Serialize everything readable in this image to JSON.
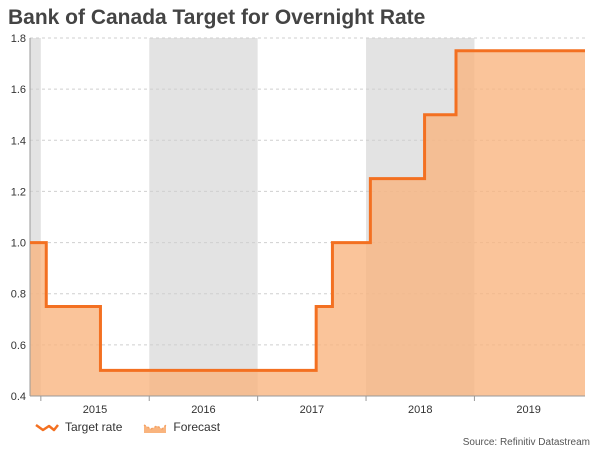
{
  "chart_data": {
    "type": "line",
    "title": "Bank of Canada Target for Overnight Rate",
    "xlabel": "",
    "ylabel": "",
    "ylim": [
      0.4,
      1.8
    ],
    "yticks": [
      0.4,
      0.6,
      0.8,
      1.0,
      1.2,
      1.4,
      1.6,
      1.8
    ],
    "ytick_labels": [
      "0.4",
      "0.6",
      "0.8",
      "1.0",
      "1.2",
      "1.4",
      "1.6",
      "1.8"
    ],
    "xlim": [
      2014.9,
      2020.02
    ],
    "year_bands": [
      {
        "label": "2015",
        "start": 2015.0,
        "end": 2016.0
      },
      {
        "label": "2016",
        "start": 2016.0,
        "end": 2017.0
      },
      {
        "label": "2017",
        "start": 2017.0,
        "end": 2018.0
      },
      {
        "label": "2018",
        "start": 2018.0,
        "end": 2019.0
      },
      {
        "label": "2019",
        "start": 2019.0,
        "end": 2020.0
      }
    ],
    "shaded_periods": [
      {
        "start": 2014.9,
        "end": 2015.0
      },
      {
        "start": 2016.0,
        "end": 2017.0
      },
      {
        "start": 2018.0,
        "end": 2019.0
      }
    ],
    "series": [
      {
        "name": "Target rate",
        "color": "#F37021",
        "step": true,
        "x": [
          2014.9,
          2015.05,
          2015.55,
          2017.54,
          2017.69,
          2018.04,
          2018.54,
          2018.83,
          2020.02
        ],
        "values": [
          1.0,
          0.75,
          0.5,
          0.75,
          1.0,
          1.25,
          1.5,
          1.75,
          1.75
        ]
      }
    ],
    "forecast_area": {
      "name": "Forecast",
      "color": "#F9B47E"
    },
    "legend": [
      "Target rate",
      "Forecast"
    ],
    "legend_position": "bottom-left",
    "grid": true
  },
  "source": "Source: Refinitiv Datastream"
}
